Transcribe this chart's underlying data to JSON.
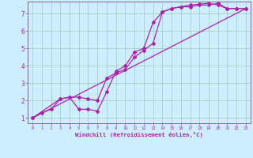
{
  "background_color": "#cceeff",
  "grid_color": "#99ccbb",
  "line_color": "#aa22aa",
  "marker": "D",
  "markersize": 2.0,
  "linewidth": 0.9,
  "xlabel": "Windchill (Refroidissement éolien,°C)",
  "xlabel_color": "#aa22aa",
  "tick_color": "#aa22aa",
  "spine_color": "#886688",
  "xlim": [
    -0.5,
    23.5
  ],
  "ylim": [
    0.7,
    7.7
  ],
  "xticks": [
    0,
    1,
    2,
    3,
    4,
    5,
    6,
    7,
    8,
    9,
    10,
    11,
    12,
    13,
    14,
    15,
    16,
    17,
    18,
    19,
    20,
    21,
    22,
    23
  ],
  "yticks": [
    1,
    2,
    3,
    4,
    5,
    6,
    7
  ],
  "series1_x": [
    0,
    1,
    2,
    3,
    4,
    5,
    6,
    7,
    8,
    9,
    10,
    11,
    12,
    13,
    14,
    15,
    16,
    17,
    18,
    19,
    20,
    21,
    22,
    23
  ],
  "series1_y": [
    1.0,
    1.3,
    1.5,
    2.1,
    2.2,
    1.5,
    1.5,
    1.4,
    2.5,
    3.7,
    4.0,
    4.8,
    5.0,
    6.5,
    7.1,
    7.3,
    7.4,
    7.5,
    7.55,
    7.6,
    7.5,
    7.3,
    7.3,
    7.3
  ],
  "series2_x": [
    0,
    3,
    4,
    5,
    6,
    7,
    8,
    9,
    10,
    11,
    12,
    13,
    14,
    15,
    16,
    17,
    18,
    19,
    20,
    21,
    22,
    23
  ],
  "series2_y": [
    1.0,
    2.1,
    2.2,
    2.2,
    2.1,
    2.0,
    3.3,
    3.6,
    3.8,
    4.5,
    4.9,
    5.3,
    7.1,
    7.3,
    7.4,
    7.4,
    7.5,
    7.5,
    7.6,
    7.3,
    7.3,
    7.3
  ],
  "series3_x": [
    0,
    23
  ],
  "series3_y": [
    1.0,
    7.3
  ]
}
